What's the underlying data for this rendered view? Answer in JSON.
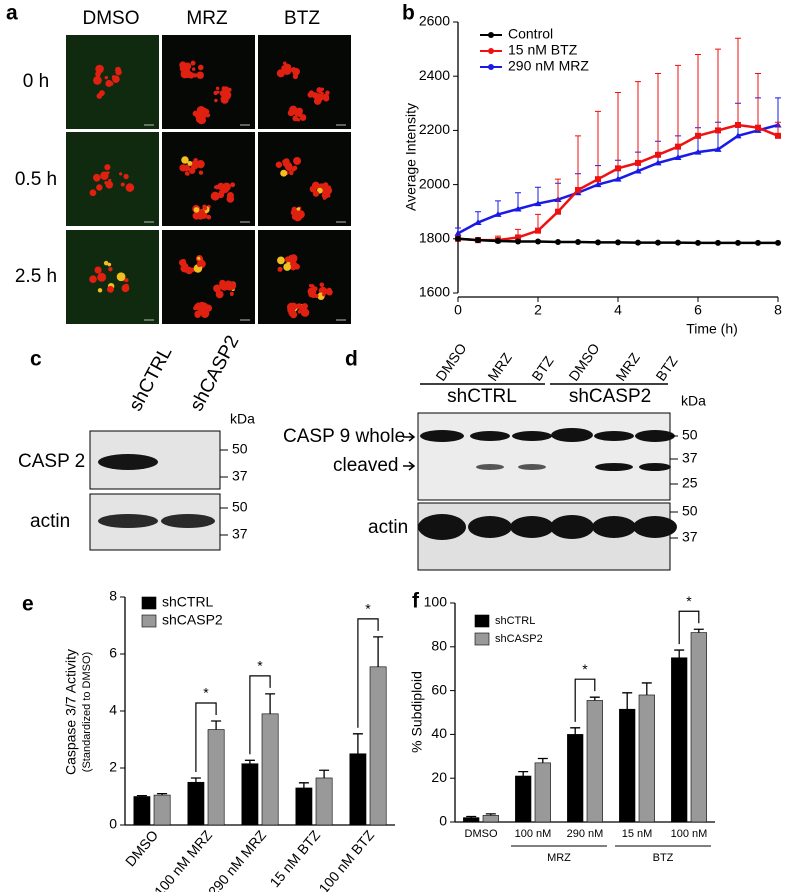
{
  "panel_a": {
    "label": "a",
    "columns": [
      "DMSO",
      "MRZ",
      "BTZ"
    ],
    "rows": [
      "0 h",
      "0.5 h",
      "2.5 h"
    ]
  },
  "panel_c": {
    "label": "c",
    "lanes": [
      "shCTRL",
      "shCASP2"
    ],
    "unit": "kDa",
    "blots": [
      "CASP 2",
      "actin"
    ],
    "markers": [
      "50",
      "37",
      "50",
      "37"
    ]
  },
  "panel_d": {
    "label": "d",
    "lanes": [
      "DMSO",
      "MRZ",
      "BTZ",
      "DMSO",
      "MRZ",
      "BTZ"
    ],
    "groups": [
      "shCTRL",
      "shCASP2"
    ],
    "unit": "kDa",
    "bands": [
      "CASP 9 whole",
      "cleaved",
      "actin"
    ],
    "markers": [
      "50",
      "37",
      "25",
      "50",
      "37"
    ]
  },
  "chart_data": [
    {
      "type": "line",
      "label": "b",
      "x_label": "Time (h)",
      "y_label": "Average Intensity",
      "x": [
        0,
        0.5,
        1,
        1.5,
        2,
        2.5,
        3,
        3.5,
        4,
        4.5,
        5,
        5.5,
        6,
        6.5,
        7,
        7.5,
        8
      ],
      "xlim": [
        0,
        8
      ],
      "xticks": [
        0,
        2,
        4,
        6,
        8
      ],
      "ylim": [
        1600,
        2600
      ],
      "yticks": [
        1600,
        1800,
        2000,
        2200,
        2400,
        2600
      ],
      "series": [
        {
          "name": "Control",
          "color": "#000000",
          "values": [
            1800,
            1795,
            1792,
            1790,
            1790,
            1788,
            1788,
            1787,
            1787,
            1786,
            1786,
            1786,
            1785,
            1785,
            1785,
            1785,
            1785
          ]
        },
        {
          "name": "15 nM BTZ",
          "color": "#ee1111",
          "values": [
            1800,
            1795,
            1795,
            1805,
            1830,
            1900,
            1980,
            2020,
            2060,
            2080,
            2110,
            2140,
            2180,
            2200,
            2220,
            2210,
            2180
          ],
          "errors": [
            10,
            10,
            15,
            30,
            60,
            120,
            200,
            250,
            280,
            300,
            300,
            300,
            300,
            300,
            320,
            200,
            50
          ]
        },
        {
          "name": "290 nM MRZ",
          "color": "#1a1ae6",
          "values": [
            1820,
            1860,
            1890,
            1910,
            1930,
            1945,
            1970,
            2000,
            2020,
            2050,
            2080,
            2100,
            2120,
            2130,
            2180,
            2200,
            2220
          ],
          "errors": [
            20,
            40,
            50,
            60,
            60,
            60,
            70,
            70,
            70,
            70,
            80,
            80,
            90,
            100,
            120,
            120,
            100
          ]
        }
      ]
    },
    {
      "type": "bar",
      "label": "e",
      "y_label": "Caspase 3/7 Activity",
      "y_label_note": "(Standardized to DMSO)",
      "categories": [
        "DMSO",
        "100 nM MRZ",
        "290 nM MRZ",
        "15 nM BTZ",
        "100 nM BTZ"
      ],
      "ylim": [
        0,
        8
      ],
      "yticks": [
        0,
        2,
        4,
        6,
        8
      ],
      "series": [
        {
          "name": "shCTRL",
          "color": "#000000",
          "values": [
            1,
            1.5,
            2.15,
            1.3,
            2.5
          ],
          "errors": [
            0.03,
            0.15,
            0.12,
            0.18,
            0.7
          ]
        },
        {
          "name": "shCASP2",
          "color": "#999999",
          "values": [
            1.05,
            3.35,
            3.9,
            1.65,
            5.55
          ],
          "errors": [
            0.05,
            0.3,
            0.7,
            0.27,
            1.05
          ]
        }
      ],
      "significance": [
        null,
        "*",
        "*",
        null,
        "*"
      ]
    },
    {
      "type": "bar",
      "label": "f",
      "y_label": "% Subdiploid",
      "categories": [
        "DMSO",
        "100 nM",
        "290 nM",
        "15 nM",
        "100 nM"
      ],
      "category_groups": [
        null,
        "MRZ",
        "MRZ",
        "BTZ",
        "BTZ"
      ],
      "ylim": [
        0,
        100
      ],
      "yticks": [
        0,
        20,
        40,
        60,
        80,
        100
      ],
      "series": [
        {
          "name": "shCTRL",
          "color": "#000000",
          "values": [
            2,
            21,
            40,
            51.5,
            75
          ],
          "errors": [
            0.5,
            2,
            3,
            7.5,
            3.5
          ]
        },
        {
          "name": "shCASP2",
          "color": "#999999",
          "values": [
            3,
            27,
            55.5,
            58,
            86.5
          ],
          "errors": [
            0.7,
            2,
            1.5,
            5.5,
            1.5
          ]
        }
      ],
      "significance": [
        null,
        null,
        "*",
        null,
        "*"
      ]
    }
  ]
}
